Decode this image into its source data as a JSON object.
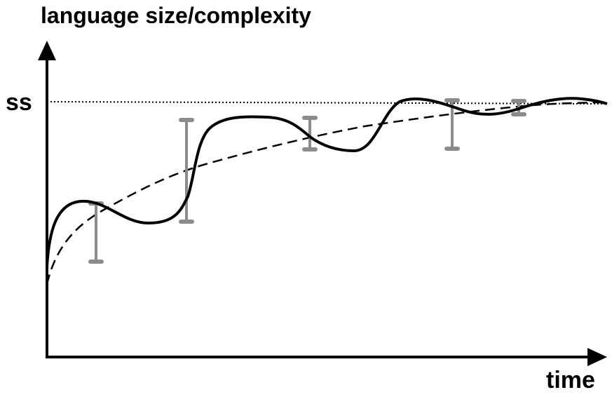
{
  "labels": {
    "y_axis": "language size/complexity",
    "x_axis": "time",
    "steady_state": "ss"
  },
  "colors": {
    "background": "#ffffff",
    "axis": "#000000",
    "actual_curve": "#000000",
    "smooth_curve": "#000000",
    "steady_state_line": "#000000",
    "error_bars": "#8c8c8c"
  }
}
